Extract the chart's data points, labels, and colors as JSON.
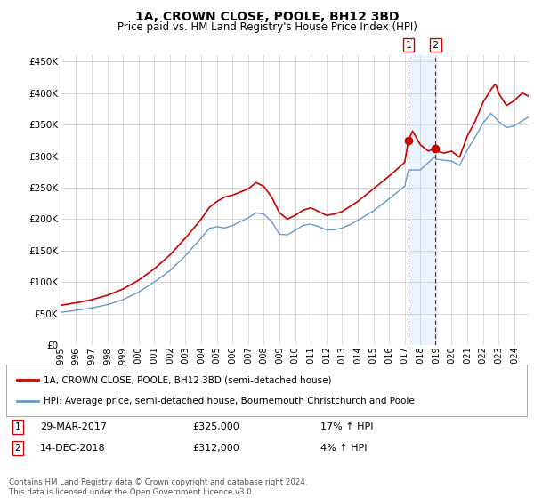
{
  "title": "1A, CROWN CLOSE, POOLE, BH12 3BD",
  "subtitle": "Price paid vs. HM Land Registry's House Price Index (HPI)",
  "ylabel_ticks": [
    "£0",
    "£50K",
    "£100K",
    "£150K",
    "£200K",
    "£250K",
    "£300K",
    "£350K",
    "£400K",
    "£450K"
  ],
  "ytick_values": [
    0,
    50000,
    100000,
    150000,
    200000,
    250000,
    300000,
    350000,
    400000,
    450000
  ],
  "ylim": [
    0,
    460000
  ],
  "xlim_start": 1995.0,
  "xlim_end": 2024.92,
  "legend_line1": "1A, CROWN CLOSE, POOLE, BH12 3BD (semi-detached house)",
  "legend_line2": "HPI: Average price, semi-detached house, Bournemouth Christchurch and Poole",
  "sale1_date": "29-MAR-2017",
  "sale1_price": "£325,000",
  "sale1_hpi": "17% ↑ HPI",
  "sale1_x": 2017.24,
  "sale1_y": 325000,
  "sale2_date": "14-DEC-2018",
  "sale2_price": "£312,000",
  "sale2_hpi": "4% ↑ HPI",
  "sale2_x": 2018.96,
  "sale2_y": 312000,
  "footnote": "Contains HM Land Registry data © Crown copyright and database right 2024.\nThis data is licensed under the Open Government Licence v3.0.",
  "hpi_color": "#6699cc",
  "price_color": "#cc0000",
  "background_color": "#ffffff",
  "plot_bg_color": "#ffffff",
  "grid_color": "#cccccc",
  "sale_vline_color": "#cc0000",
  "sale_fill_color": "#ddeeff"
}
